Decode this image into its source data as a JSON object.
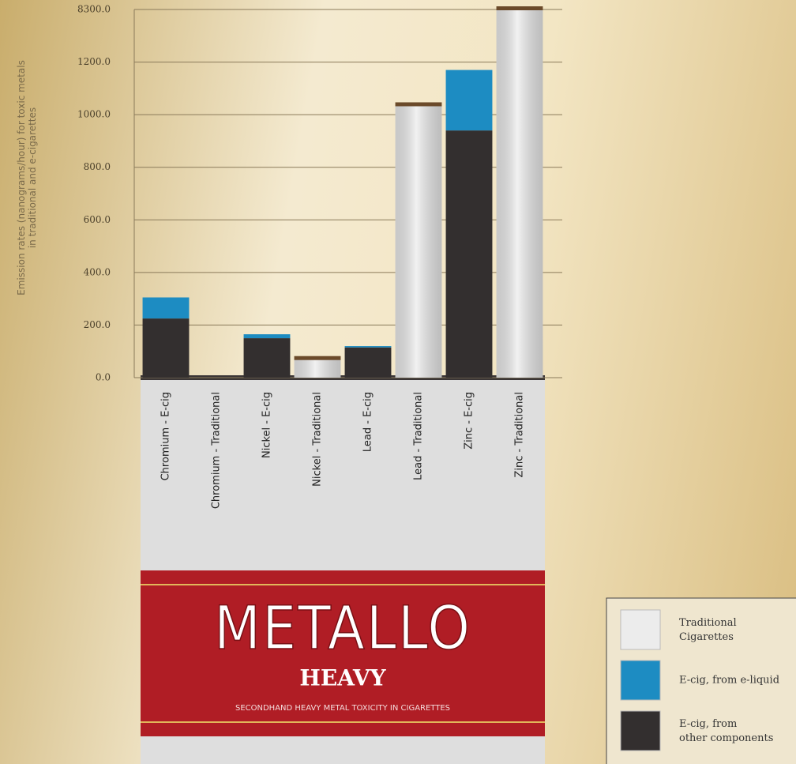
{
  "chart_data": {
    "type": "stacked_bar",
    "title": "METALLO",
    "subtitle": "HEAVY",
    "caption": "SECONDHAND HEAVY METAL TOXICITY IN CIGARETTES",
    "y_label": "Emission rates (nanograms/hour) for toxic metals in traditional and e-cigarettes",
    "categories": [
      "Chromium - E-cig",
      "Chromium - Traditional",
      "Nickel - E-cig",
      "Nickel - Traditional",
      "Lead - E-cig",
      "Lead - Traditional",
      "Zinc - E-cig",
      "Zinc - Traditional"
    ],
    "series": [
      {
        "name": "Traditional Cigarettes",
        "color": "#ececec",
        "values": [
          null,
          0,
          null,
          70,
          null,
          1035,
          null,
          8300
        ]
      },
      {
        "name": "E-cig, from e-liquid",
        "color": "#1d8cc2",
        "values": [
          80,
          null,
          15,
          null,
          5,
          null,
          230,
          null
        ]
      },
      {
        "name": "E-cig, from other components",
        "color": "#332f2f",
        "values": [
          225,
          null,
          150,
          null,
          115,
          null,
          940,
          null
        ]
      }
    ],
    "ylim": [
      0,
      8300
    ],
    "yticks": [
      {
        "value": 0,
        "label": "0.0"
      },
      {
        "value": 200,
        "label": "200.0"
      },
      {
        "value": 400,
        "label": "400.0"
      },
      {
        "value": 600,
        "label": "600.0"
      },
      {
        "value": 800,
        "label": "800.0"
      },
      {
        "value": 1000,
        "label": "1000.0"
      },
      {
        "value": 1200,
        "label": "1200.0"
      },
      {
        "value": 8300,
        "label": "8300.0"
      }
    ],
    "broken_axis": true,
    "grid": true,
    "legend": "bottom-right"
  }
}
